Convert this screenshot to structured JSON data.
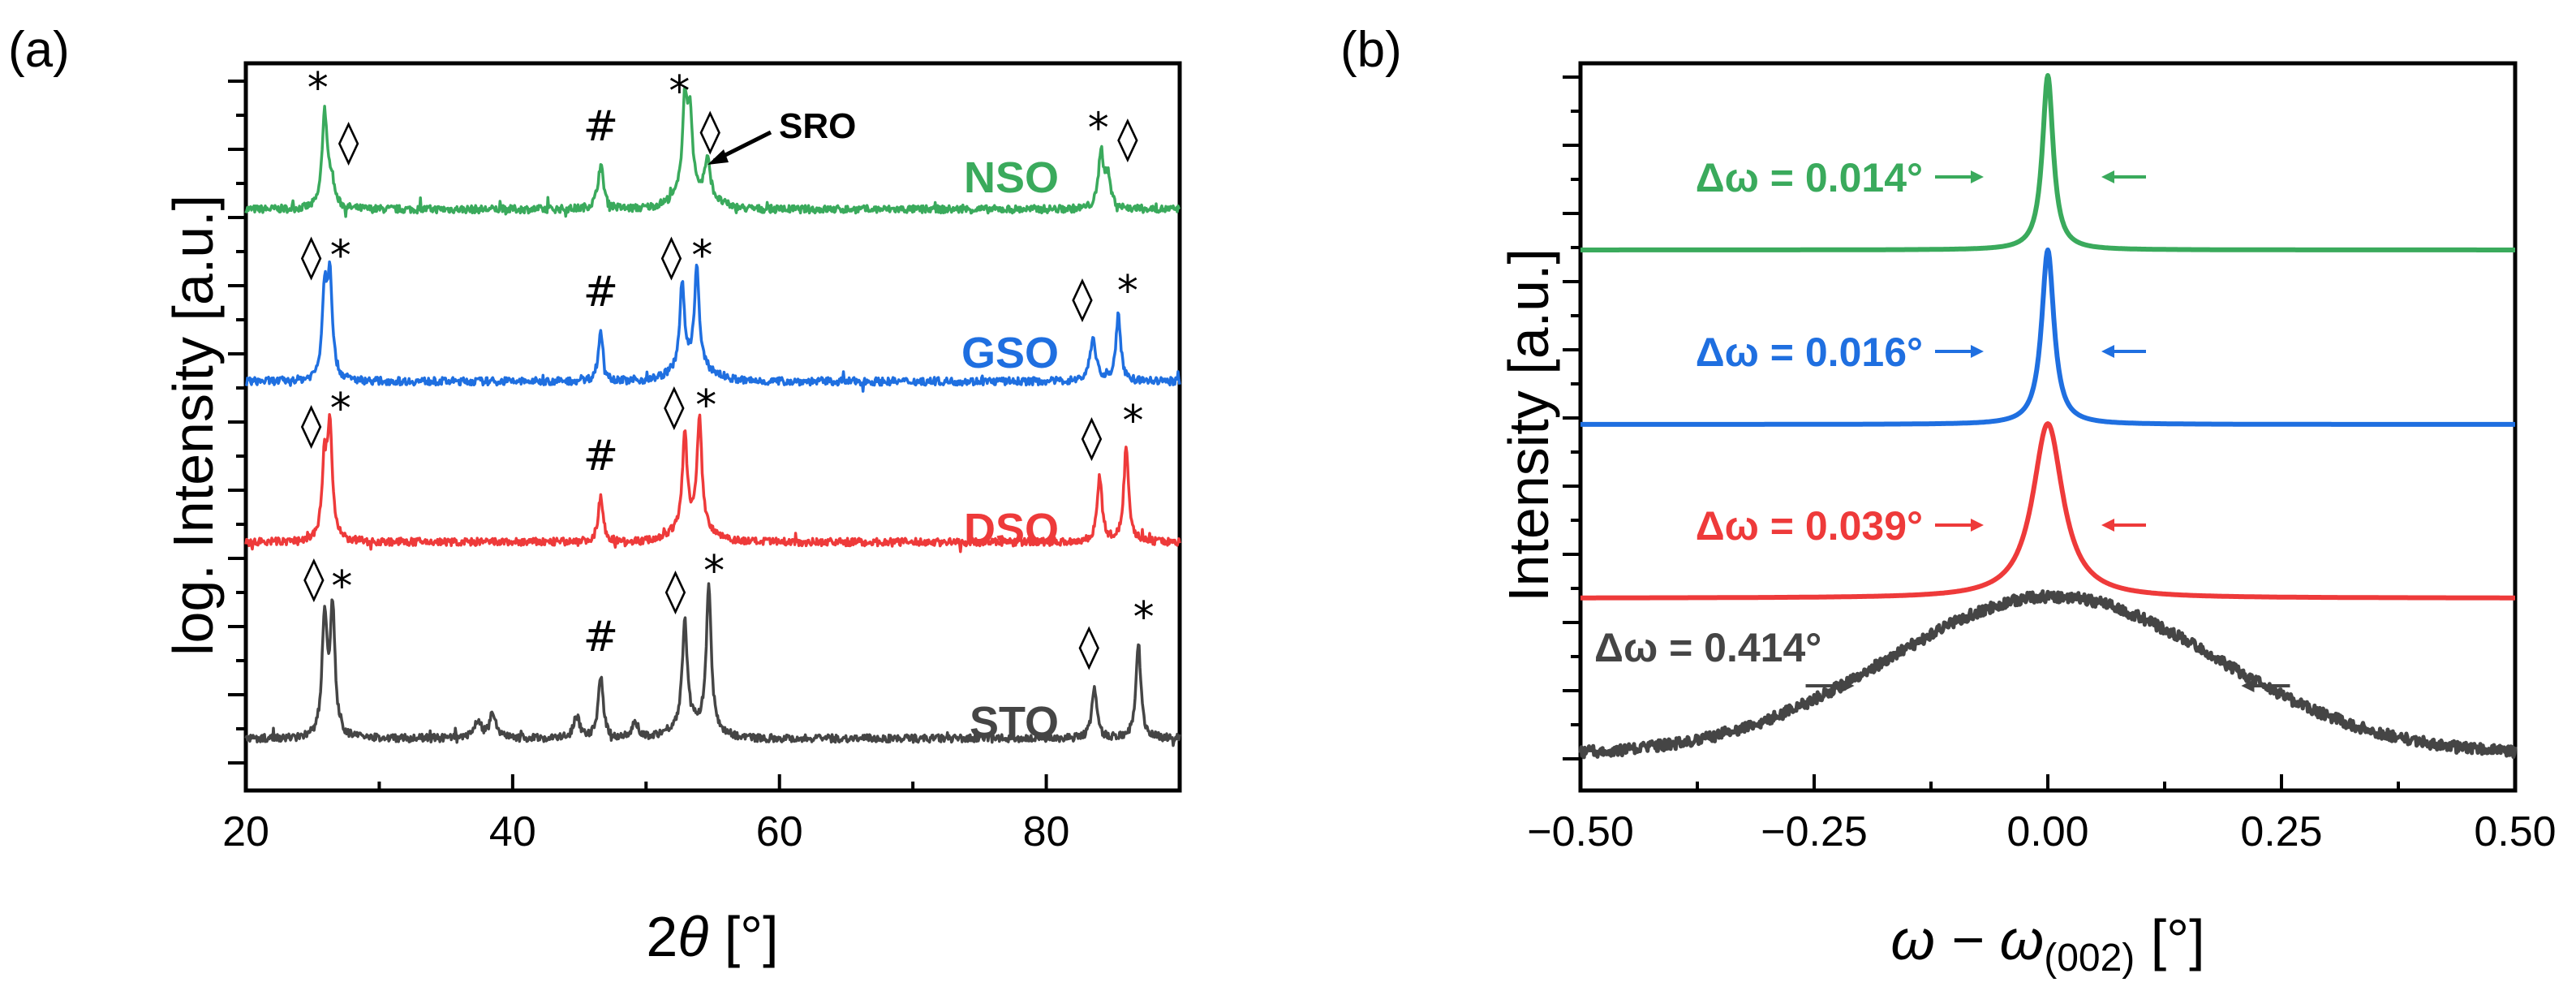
{
  "colors": {
    "NSO": "#3aaa5c",
    "GSO": "#1f6fe0",
    "DSO": "#ee3a3a",
    "STO": "#454545"
  },
  "chart_data": [
    {
      "type": "line",
      "panel": "(a)",
      "xlabel_prefix": "2",
      "xlabel_symbol": "θ",
      "xlabel_unit": " [°]",
      "ylabel": "log. Intensity [a.u.]",
      "xlim": [
        20,
        90
      ],
      "xticks": [
        20,
        40,
        60,
        80
      ],
      "tick_labels": [
        "20",
        "40",
        "60",
        "80"
      ],
      "series": [
        {
          "name": "NSO",
          "color": "#3aaa5c",
          "baseline": 0.0,
          "peaks": [
            [
              25.9,
              0.62
            ],
            [
              26.4,
              0.18
            ],
            [
              46.6,
              0.28
            ],
            [
              52.9,
              0.6
            ],
            [
              53.3,
              0.5
            ],
            [
              54.6,
              0.25
            ],
            [
              84.1,
              0.36
            ],
            [
              84.6,
              0.2
            ]
          ],
          "markers": [
            {
              "x": 25.4,
              "text": "*"
            },
            {
              "x": 27.7,
              "text": "◊"
            },
            {
              "x": 46.6,
              "text": "#"
            },
            {
              "x": 52.5,
              "text": "*"
            },
            {
              "x": 54.8,
              "text": "◊"
            },
            {
              "x": 83.9,
              "text": "*"
            },
            {
              "x": 86.1,
              "text": "◊"
            }
          ],
          "annotation": "SRO"
        },
        {
          "name": "GSO",
          "color": "#1f6fe0",
          "baseline": 0.0,
          "peaks": [
            [
              25.9,
              0.55
            ],
            [
              26.3,
              0.65
            ],
            [
              46.6,
              0.32
            ],
            [
              52.7,
              0.55
            ],
            [
              53.8,
              0.65
            ],
            [
              83.5,
              0.28
            ],
            [
              85.4,
              0.42
            ]
          ],
          "markers": [
            {
              "x": 24.9,
              "text": "◊"
            },
            {
              "x": 27.1,
              "text": "*"
            },
            {
              "x": 46.6,
              "text": "#"
            },
            {
              "x": 51.9,
              "text": "◊"
            },
            {
              "x": 54.2,
              "text": "*"
            },
            {
              "x": 82.7,
              "text": "◊"
            },
            {
              "x": 86.1,
              "text": "*"
            }
          ]
        },
        {
          "name": "DSO",
          "color": "#ee3a3a",
          "baseline": 0.0,
          "peaks": [
            [
              25.9,
              0.5
            ],
            [
              26.3,
              0.7
            ],
            [
              46.6,
              0.3
            ],
            [
              52.9,
              0.62
            ],
            [
              54.0,
              0.72
            ],
            [
              84.0,
              0.42
            ],
            [
              86.0,
              0.62
            ]
          ],
          "markers": [
            {
              "x": 24.9,
              "text": "◊"
            },
            {
              "x": 27.1,
              "text": "*"
            },
            {
              "x": 46.6,
              "text": "#"
            },
            {
              "x": 52.1,
              "text": "◊"
            },
            {
              "x": 54.5,
              "text": "*"
            },
            {
              "x": 83.4,
              "text": "◊"
            },
            {
              "x": 86.5,
              "text": "*"
            }
          ]
        },
        {
          "name": "STO",
          "color": "#454545",
          "baseline": 0.0,
          "peaks": [
            [
              25.9,
              0.78
            ],
            [
              26.5,
              0.82
            ],
            [
              37.4,
              0.12
            ],
            [
              38.5,
              0.16
            ],
            [
              44.8,
              0.14
            ],
            [
              46.6,
              0.4
            ],
            [
              49.2,
              0.1
            ],
            [
              52.9,
              0.7
            ],
            [
              54.7,
              0.92
            ],
            [
              83.6,
              0.34
            ],
            [
              86.9,
              0.62
            ]
          ],
          "markers": [
            {
              "x": 25.1,
              "text": "◊"
            },
            {
              "x": 27.2,
              "text": "*"
            },
            {
              "x": 46.6,
              "text": "#"
            },
            {
              "x": 52.2,
              "text": "◊"
            },
            {
              "x": 55.1,
              "text": "*"
            },
            {
              "x": 83.2,
              "text": "◊"
            },
            {
              "x": 87.3,
              "text": "*"
            }
          ]
        }
      ]
    },
    {
      "type": "line",
      "panel": "(b)",
      "xlabel": "ω − ω",
      "xlabel_sub": "(002)",
      "xlabel_unit": " [°]",
      "ylabel": "Intensity [a.u.]",
      "xlim": [
        -0.5,
        0.5
      ],
      "xticks": [
        -0.5,
        -0.25,
        0.0,
        0.25,
        0.5
      ],
      "tick_labels": [
        "−0.50",
        "−0.25",
        "0.00",
        "0.25",
        "0.50"
      ],
      "series": [
        {
          "name": "NSO",
          "color": "#3aaa5c",
          "fwhm": 0.014,
          "label": "Δω = 0.014°"
        },
        {
          "name": "GSO",
          "color": "#1f6fe0",
          "fwhm": 0.016,
          "label": "Δω = 0.016°"
        },
        {
          "name": "DSO",
          "color": "#ee3a3a",
          "fwhm": 0.039,
          "label": "Δω = 0.039°"
        },
        {
          "name": "STO",
          "color": "#454545",
          "fwhm": 0.414,
          "label": "Δω = 0.414°"
        }
      ]
    }
  ]
}
